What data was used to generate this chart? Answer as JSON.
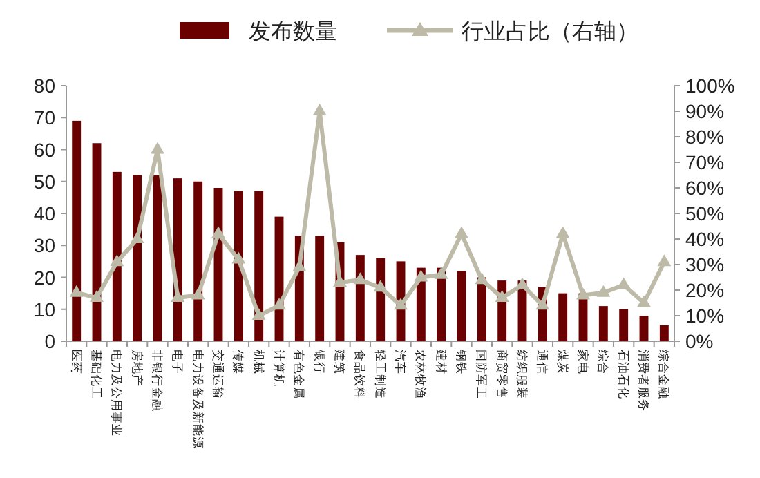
{
  "chart_data": {
    "type": "bar",
    "categories": [
      "医药",
      "基础化工",
      "电力及公用事业",
      "房地产",
      "非银行金融",
      "电子",
      "电力设备及新能源",
      "交通运输",
      "传媒",
      "机械",
      "计算机",
      "有色金属",
      "银行",
      "建筑",
      "食品饮料",
      "轻工制造",
      "汽车",
      "农林牧渔",
      "建材",
      "钢铁",
      "国防军工",
      "商贸零售",
      "纺织服装",
      "通信",
      "煤炭",
      "家电",
      "综合",
      "石油石化",
      "消费者服务",
      "综合金融"
    ],
    "series": [
      {
        "name": "发布数量",
        "color": "#6b0000",
        "values": [
          69,
          62,
          53,
          52,
          52,
          51,
          50,
          48,
          47,
          47,
          39,
          33,
          33,
          31,
          27,
          26,
          25,
          23,
          23,
          22,
          20,
          19,
          19,
          17,
          15,
          15,
          11,
          10,
          8,
          5
        ]
      },
      {
        "name": "行业占比（右轴）",
        "type": "line",
        "axis": "y2",
        "color": "#bdbaa8",
        "marker": "triangle",
        "values": [
          19,
          17,
          31,
          40,
          75,
          17,
          18,
          42,
          32,
          10,
          14,
          29,
          90,
          23,
          24,
          21,
          14,
          25,
          26,
          42,
          24,
          17,
          22,
          14,
          42,
          18,
          19,
          22,
          15,
          31
        ]
      }
    ],
    "ylim": [
      0,
      80
    ],
    "yticks": [
      0,
      10,
      20,
      30,
      40,
      50,
      60,
      70,
      80
    ],
    "y2lim": [
      0,
      100
    ],
    "y2ticks": [
      {
        "value": 0,
        "label": "0%"
      },
      {
        "value": 10,
        "label": "10%"
      },
      {
        "value": 20,
        "label": "20%"
      },
      {
        "value": 30,
        "label": "30%"
      },
      {
        "value": 40,
        "label": "40%"
      },
      {
        "value": 50,
        "label": "50%"
      },
      {
        "value": 60,
        "label": "60%"
      },
      {
        "value": 70,
        "label": "70%"
      },
      {
        "value": 80,
        "label": "80%"
      },
      {
        "value": 90,
        "label": "90%"
      },
      {
        "value": 100,
        "label": "100%"
      }
    ],
    "legend": "top"
  }
}
